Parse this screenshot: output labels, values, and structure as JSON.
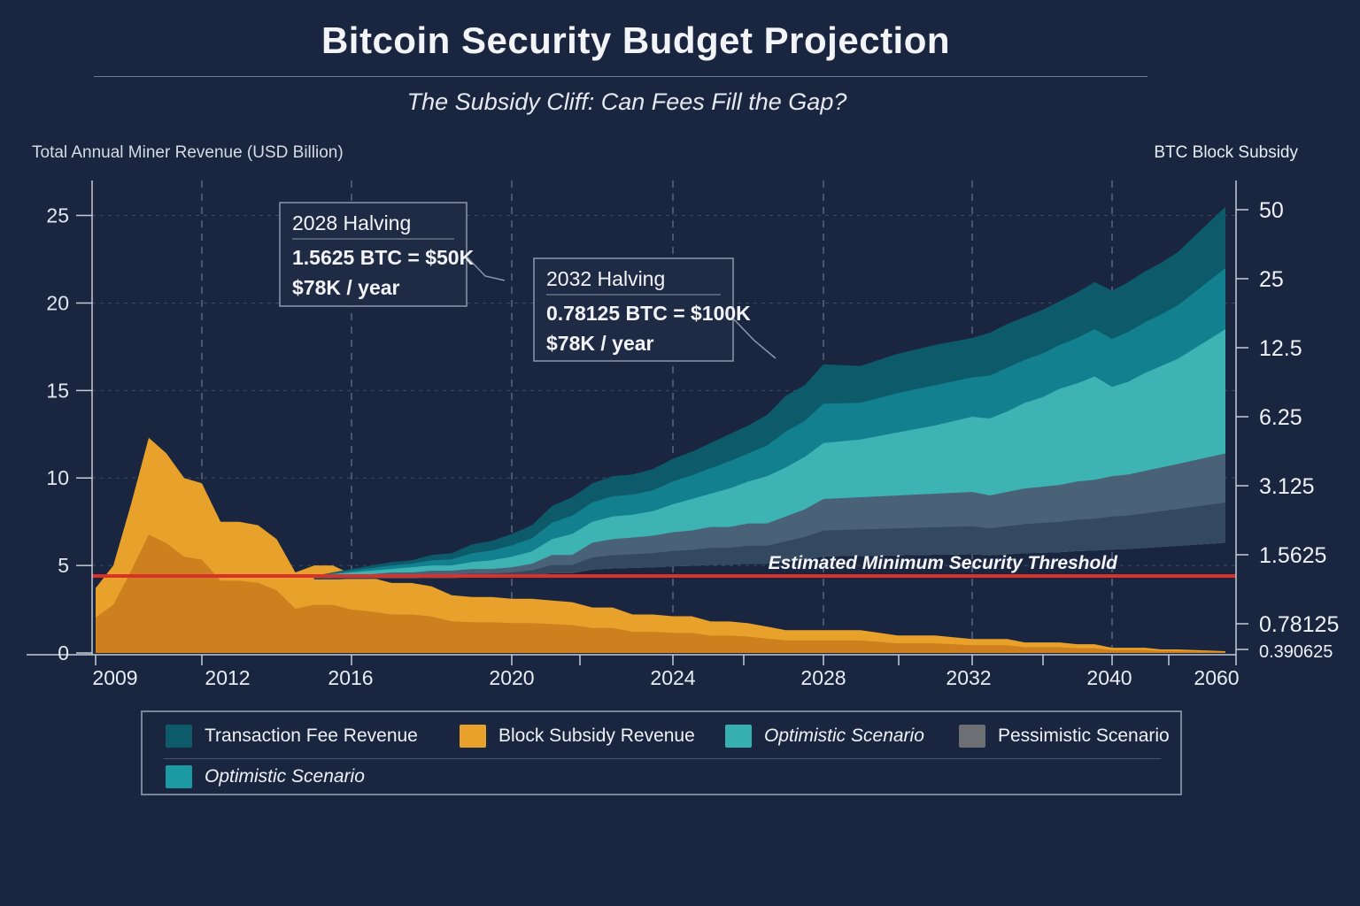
{
  "title": "Bitcoin Security Budget Projection",
  "subtitle": "The Subsidy Cliff: Can Fees Fill the Gap?",
  "colors": {
    "background": "#1a2540",
    "fee_dark": "#0d5a6a",
    "fee_mid": "#12808e",
    "optimistic": "#3eb3b3",
    "pessimistic": "#4a6278",
    "subsidy_light": "#e8a12a",
    "subsidy_dark": "#c97a1c",
    "threshold": "#d8322a"
  },
  "legend": {
    "items": [
      {
        "label": "Transaction Fee Revenue",
        "color": "#0d5a6a",
        "italic": false
      },
      {
        "label": "Block Subsidy Revenue",
        "color": "#e8a12a",
        "italic": false
      },
      {
        "label": "Optimistic Scenario",
        "color": "#36b0b0",
        "italic": true
      },
      {
        "label": "Pessimistic Scenario",
        "color": "#6d6f75",
        "italic": false
      },
      {
        "label": "Optimistic Scenario",
        "color": "#1c9aa3",
        "italic": true
      }
    ]
  },
  "chart_data": {
    "type": "area",
    "title": "Bitcoin Security Budget Projection",
    "subtitle": "The Subsidy Cliff: Can Fees Fill the Gap?",
    "ylabel": "Total Annual Miner Revenue (USD Billion)",
    "y2label": "BTC Block Subsidy",
    "ylim": [
      0,
      27
    ],
    "yticks": [
      0,
      5,
      10,
      15,
      20,
      25
    ],
    "y2ticks": [
      "50",
      "25",
      "12.5",
      "6.25",
      "3.125",
      "1.5625",
      "0.78125",
      "0.390625"
    ],
    "xticks": [
      "2009",
      "2012",
      "2016",
      "2020",
      "2024",
      "2028",
      "2032",
      "2040",
      "2060"
    ],
    "grid": true,
    "threshold": {
      "label": "Estimated Minimum Security Threshold",
      "value": 4.4
    },
    "annotations": [
      {
        "title": "2028 Halving",
        "lines": [
          "1.5625 BTC = $50K",
          "$78K / year"
        ]
      },
      {
        "title": "2032 Halving",
        "lines": [
          "0.78125 BTC = $100K",
          "$78K / year"
        ]
      }
    ],
    "x": [
      2009,
      2009.5,
      2010,
      2010.5,
      2011,
      2011.5,
      2012,
      2012.5,
      2013,
      2013.5,
      2014,
      2014.5,
      2015,
      2015.5,
      2016,
      2016.5,
      2017,
      2017.5,
      2018,
      2018.5,
      2019,
      2019.5,
      2020,
      2020.5,
      2021,
      2021.5,
      2022,
      2022.5,
      2023,
      2023.5,
      2024,
      2024.5,
      2025,
      2025.5,
      2026,
      2026.5,
      2027,
      2027.5,
      2028,
      2029,
      2030,
      2031,
      2032,
      2033,
      2034,
      2035,
      2036,
      2037,
      2038,
      2039,
      2040,
      2041,
      2042,
      2043,
      2044,
      2060
    ],
    "series": [
      {
        "name": "Block Subsidy Revenue",
        "values": [
          3.7,
          5.0,
          8.5,
          12.3,
          11.4,
          10.0,
          9.7,
          7.5,
          7.5,
          7.3,
          6.5,
          4.6,
          5.0,
          5.0,
          4.5,
          4.3,
          4.0,
          4.0,
          3.8,
          3.3,
          3.2,
          3.2,
          3.1,
          3.1,
          3.0,
          2.9,
          2.6,
          2.6,
          2.2,
          2.2,
          2.1,
          2.1,
          1.8,
          1.8,
          1.7,
          1.5,
          1.3,
          1.3,
          1.3,
          1.3,
          1.0,
          1.0,
          0.8,
          0.8,
          0.8,
          0.6,
          0.6,
          0.6,
          0.5,
          0.5,
          0.3,
          0.3,
          0.3,
          0.2,
          0.2,
          0.1
        ]
      },
      {
        "name": "Pessimistic Scenario",
        "values": [
          null,
          null,
          null,
          null,
          null,
          null,
          null,
          null,
          null,
          null,
          null,
          null,
          4.4,
          4.4,
          4.5,
          4.5,
          4.6,
          4.6,
          4.7,
          4.7,
          4.8,
          4.8,
          4.9,
          5.1,
          5.6,
          5.6,
          6.3,
          6.5,
          6.6,
          6.7,
          6.9,
          7.0,
          7.2,
          7.2,
          7.4,
          7.4,
          7.8,
          8.2,
          8.8,
          8.9,
          9.0,
          9.1,
          9.2,
          9.0,
          9.2,
          9.4,
          9.5,
          9.6,
          9.8,
          9.9,
          10.1,
          10.2,
          10.4,
          10.6,
          10.8,
          11.4
        ]
      },
      {
        "name": "Optimistic Scenario",
        "values": [
          null,
          null,
          null,
          null,
          null,
          null,
          null,
          null,
          null,
          null,
          null,
          null,
          4.4,
          4.5,
          4.6,
          4.7,
          4.8,
          4.9,
          5.0,
          5.0,
          5.2,
          5.3,
          5.5,
          5.8,
          6.5,
          6.8,
          7.5,
          7.8,
          7.9,
          8.1,
          8.5,
          8.8,
          9.1,
          9.4,
          9.8,
          10.1,
          10.6,
          11.2,
          12.0,
          12.2,
          12.6,
          13.0,
          13.5,
          13.4,
          13.8,
          14.3,
          14.6,
          15.1,
          15.4,
          15.8,
          15.2,
          15.5,
          16.0,
          16.4,
          16.8,
          18.5
        ]
      },
      {
        "name": "Transaction Fee Revenue",
        "values": [
          null,
          null,
          null,
          null,
          null,
          null,
          null,
          null,
          null,
          null,
          null,
          null,
          4.4,
          4.6,
          4.8,
          5.0,
          5.2,
          5.3,
          5.6,
          5.7,
          6.2,
          6.4,
          6.8,
          7.3,
          8.4,
          8.9,
          9.7,
          10.1,
          10.2,
          10.5,
          11.1,
          11.5,
          12.0,
          12.5,
          13.0,
          13.6,
          14.7,
          15.3,
          16.5,
          16.4,
          17.1,
          17.6,
          18.0,
          18.3,
          18.8,
          19.2,
          19.6,
          20.1,
          20.6,
          21.2,
          20.7,
          21.2,
          21.8,
          22.3,
          22.9,
          25.5
        ]
      }
    ]
  }
}
